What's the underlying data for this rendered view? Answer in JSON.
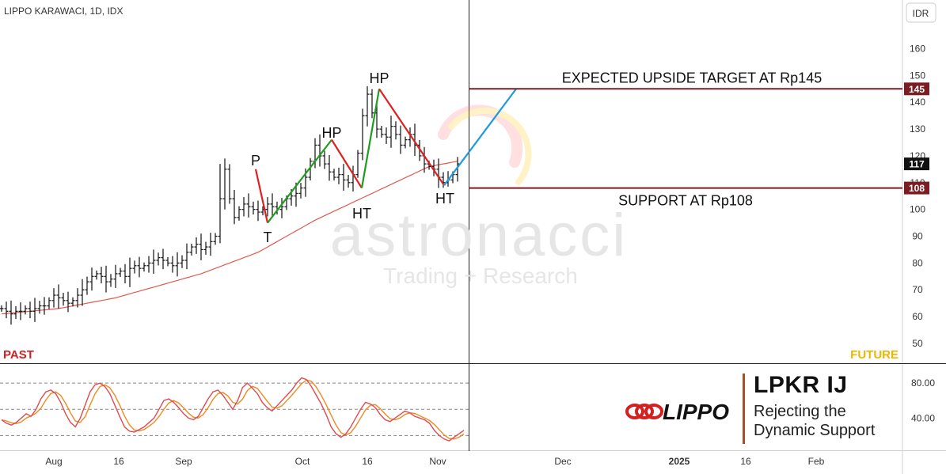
{
  "header": {
    "symbol_line": "LIPPO KARAWACI, 1D, IDX",
    "currency": "IDR"
  },
  "labels": {
    "past": "PAST",
    "future": "FUTURE"
  },
  "watermark": {
    "line1": "astronacci",
    "line2": "Trading + Research"
  },
  "brand": {
    "logo_text": "LIPPO",
    "ticker": "LPKR IJ",
    "caption_line1": "Rejecting the",
    "caption_line2": "Dynamic Support"
  },
  "colors": {
    "sma": "#e05a4e",
    "up_leg": "#1e9e1e",
    "down_leg": "#e02020",
    "projection": "#1e9be0",
    "level": "#7b1e24",
    "stoch_k": "#e04a50",
    "stoch_d": "#f08a20",
    "past": "#d42020",
    "future": "#f0b400"
  },
  "chart_data": [
    {
      "type": "ohlc",
      "title": "LIPPO KARAWACI, 1D, IDX",
      "x_ticks": [
        "Aug",
        "16",
        "Sep",
        "Oct",
        "16",
        "Nov",
        "Dec",
        "2025",
        "16",
        "Feb"
      ],
      "y_ticks": [
        50,
        60,
        70,
        80,
        90,
        100,
        110,
        120,
        130,
        140,
        150,
        160
      ],
      "ylim": [
        46,
        173
      ],
      "last_price": 117,
      "closes": [
        63,
        62,
        61,
        62,
        62,
        63,
        62,
        63,
        64,
        64,
        66,
        68,
        67,
        66,
        65,
        66,
        68,
        70,
        73,
        75,
        76,
        75,
        73,
        74,
        76,
        77,
        75,
        78,
        79,
        78,
        79,
        80,
        81,
        82,
        81,
        80,
        79,
        80,
        81,
        84,
        86,
        87,
        85,
        86,
        88,
        90,
        104,
        115,
        104,
        97,
        100,
        102,
        101,
        100,
        99,
        100,
        102,
        101,
        100,
        101,
        104,
        105,
        106,
        108,
        112,
        118,
        124,
        120,
        117,
        114,
        112,
        113,
        111,
        110,
        113,
        121,
        135,
        143,
        136,
        130,
        128,
        127,
        131,
        128,
        124,
        126,
        128,
        124,
        120,
        117,
        116,
        115,
        112,
        110,
        111,
        113,
        117
      ],
      "sma_start": [
        61,
        62,
        63,
        65,
        67,
        70,
        73,
        76,
        80,
        84,
        90,
        96,
        101,
        106,
        111,
        116,
        118
      ],
      "swing_labels": [
        "P",
        "T",
        "HP",
        "HT",
        "HP",
        "HT"
      ],
      "zigzag": [
        115,
        95,
        126,
        108,
        145,
        109
      ],
      "projection": {
        "from": 109,
        "to": 145
      },
      "levels": [
        {
          "value": 145,
          "label": "EXPECTED UPSIDE TARGET AT Rp145",
          "tag": "145"
        },
        {
          "value": 108,
          "label": "SUPPORT AT Rp108",
          "tag": "108"
        }
      ]
    },
    {
      "type": "line",
      "name": "Stochastic",
      "y_ticks": [
        40,
        80
      ],
      "ylim": [
        5,
        100
      ],
      "reference_lines": [
        20,
        50,
        80
      ],
      "k": [
        38,
        34,
        32,
        35,
        40,
        45,
        42,
        50,
        62,
        70,
        72,
        68,
        58,
        45,
        35,
        30,
        40,
        55,
        70,
        78,
        80,
        76,
        68,
        55,
        42,
        30,
        25,
        24,
        27,
        30,
        35,
        40,
        50,
        60,
        62,
        58,
        52,
        45,
        40,
        38,
        42,
        52,
        62,
        70,
        72,
        66,
        58,
        50,
        60,
        75,
        80,
        74,
        68,
        58,
        52,
        48,
        54,
        60,
        66,
        72,
        80,
        86,
        84,
        76,
        66,
        56,
        44,
        30,
        22,
        18,
        22,
        30,
        40,
        50,
        58,
        56,
        52,
        44,
        38,
        36,
        40,
        44,
        48,
        46,
        42,
        40,
        38,
        34,
        26,
        20,
        16,
        14,
        18,
        22,
        26
      ]
    }
  ]
}
